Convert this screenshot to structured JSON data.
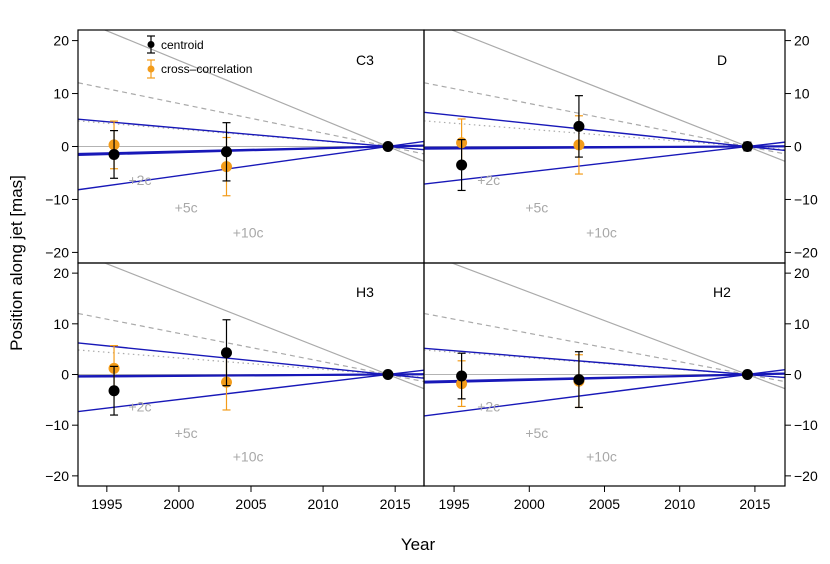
{
  "chart_data": {
    "type": "scatter",
    "xlabel": "Year",
    "ylabel": "Position along jet [mas]",
    "xlim": [
      1993,
      2017
    ],
    "ylim": [
      -22,
      22
    ],
    "xticks": [
      1995,
      2000,
      2005,
      2010,
      2015
    ],
    "yticks": [
      -20,
      -10,
      0,
      10,
      20
    ],
    "reference_epoch": 2014.5,
    "colors": {
      "centroid": "#000000",
      "crosscorr": "#f39c1a",
      "fit": "#1818b8",
      "speed": "#aaaaaa"
    },
    "legend": {
      "centroid": "centroid",
      "crosscorr": "cross–correlation"
    },
    "speed_lines": [
      {
        "label": "+2c",
        "slope": -0.225,
        "style": "dotted",
        "label_year": 1997.3,
        "label_value": -6.3
      },
      {
        "label": "+5c",
        "slope": -0.56,
        "style": "dashed",
        "label_year": 2000.5,
        "label_value": -11.5
      },
      {
        "label": "+10c",
        "slope": -1.12,
        "style": "solid",
        "label_year": 2004.8,
        "label_value": -16.2
      }
    ],
    "panels": [
      {
        "label": "C3",
        "centroid": [
          {
            "x": 1995.5,
            "y": -1.5,
            "err": 4.5
          },
          {
            "x": 2003.3,
            "y": -1.0,
            "err": 5.5
          },
          {
            "x": 2014.5,
            "y": 0.0,
            "err": 0.3
          }
        ],
        "crosscorr": [
          {
            "x": 1995.5,
            "y": 0.3,
            "err": 4.5
          },
          {
            "x": 2003.3,
            "y": -3.8,
            "err": 5.5
          }
        ],
        "fits": [
          {
            "slope": -0.24,
            "weight": "thin"
          },
          {
            "slope": 0.38,
            "weight": "thin"
          },
          {
            "slope": 0.075,
            "weight": "thick"
          },
          {
            "slope": 0.065,
            "weight": "thick"
          }
        ]
      },
      {
        "label": "D",
        "centroid": [
          {
            "x": 1995.5,
            "y": -3.5,
            "err": 4.8
          },
          {
            "x": 2003.3,
            "y": 3.8,
            "err": 5.8
          },
          {
            "x": 2014.5,
            "y": 0.0,
            "err": 0.8
          }
        ],
        "crosscorr": [
          {
            "x": 1995.5,
            "y": 0.7,
            "err": 4.5
          },
          {
            "x": 2003.3,
            "y": 0.3,
            "err": 5.5
          }
        ],
        "fits": [
          {
            "slope": -0.3,
            "weight": "thin"
          },
          {
            "slope": 0.33,
            "weight": "thin"
          },
          {
            "slope": 0.02,
            "weight": "thick"
          },
          {
            "slope": 0.01,
            "weight": "thick"
          }
        ]
      },
      {
        "label": "H3",
        "centroid": [
          {
            "x": 1995.5,
            "y": -3.2,
            "err": 4.8
          },
          {
            "x": 2003.3,
            "y": 4.3,
            "err": 6.5
          },
          {
            "x": 2014.5,
            "y": 0.0,
            "err": 0.3
          }
        ],
        "crosscorr": [
          {
            "x": 1995.5,
            "y": 1.2,
            "err": 4.5
          },
          {
            "x": 2003.3,
            "y": -1.5,
            "err": 5.5
          }
        ],
        "fits": [
          {
            "slope": -0.29,
            "weight": "thin"
          },
          {
            "slope": 0.34,
            "weight": "thin"
          },
          {
            "slope": 0.02,
            "weight": "thick"
          },
          {
            "slope": 0.015,
            "weight": "thick"
          }
        ]
      },
      {
        "label": "H2",
        "centroid": [
          {
            "x": 1995.5,
            "y": -0.3,
            "err": 4.5
          },
          {
            "x": 2003.3,
            "y": -1.0,
            "err": 5.5
          },
          {
            "x": 2014.5,
            "y": 0.0,
            "err": 0.3
          }
        ],
        "crosscorr": [
          {
            "x": 1995.5,
            "y": -1.8,
            "err": 4.5
          },
          {
            "x": 2003.3,
            "y": -1.3,
            "err": 5.2
          }
        ],
        "fits": [
          {
            "slope": -0.24,
            "weight": "thin"
          },
          {
            "slope": 0.38,
            "weight": "thin"
          },
          {
            "slope": 0.075,
            "weight": "thick"
          },
          {
            "slope": 0.065,
            "weight": "thick"
          }
        ]
      }
    ]
  }
}
